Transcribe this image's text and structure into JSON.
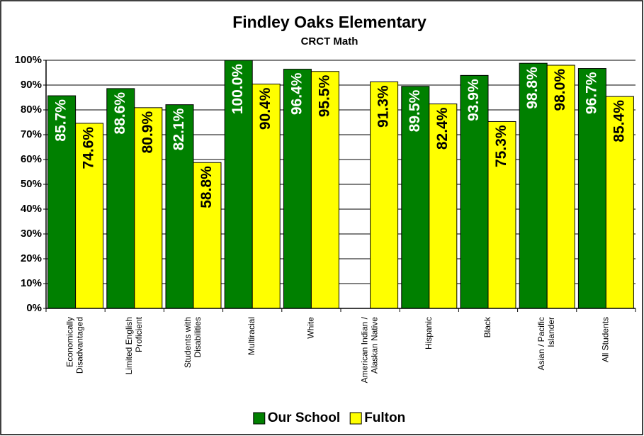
{
  "chart_data": {
    "type": "bar",
    "title": "Findley Oaks Elementary",
    "subtitle": "CRCT Math",
    "categories": [
      "Economically Disadvantaged",
      "Limited English Proficient",
      "Students with Disabilities",
      "Multiracial",
      "White",
      "American Indian / Alaskan Native",
      "Hispanic",
      "Black",
      "Asian / Pacific Islander",
      "All Students"
    ],
    "series": [
      {
        "name": "Our School",
        "color": "#008000",
        "label_color": "#ffffff",
        "values": [
          85.7,
          88.6,
          82.1,
          100.0,
          96.4,
          null,
          89.5,
          93.9,
          98.8,
          96.7
        ],
        "value_labels": [
          "85.7%",
          "88.6%",
          "82.1%",
          "100.0%",
          "96.4%",
          null,
          "89.5%",
          "93.9%",
          "98.8%",
          "96.7%"
        ]
      },
      {
        "name": "Fulton",
        "color": "#ffff00",
        "label_color": "#000000",
        "values": [
          74.6,
          80.9,
          58.8,
          90.4,
          95.5,
          91.3,
          82.4,
          75.3,
          98.0,
          85.4
        ],
        "value_labels": [
          "74.6%",
          "80.9%",
          "58.8%",
          "90.4%",
          "95.5%",
          "91.3%",
          "82.4%",
          "75.3%",
          "98.0%",
          "85.4%"
        ]
      }
    ],
    "ylim": [
      0,
      100
    ],
    "yticks": [
      {
        "value": 0,
        "label": "0%"
      },
      {
        "value": 10,
        "label": "10%"
      },
      {
        "value": 20,
        "label": "20%"
      },
      {
        "value": 30,
        "label": "30%"
      },
      {
        "value": 40,
        "label": "40%"
      },
      {
        "value": 50,
        "label": "50%"
      },
      {
        "value": 60,
        "label": "60%"
      },
      {
        "value": 70,
        "label": "70%"
      },
      {
        "value": 80,
        "label": "80%"
      },
      {
        "value": 90,
        "label": "90%"
      },
      {
        "value": 100,
        "label": "100%"
      }
    ],
    "grid": true,
    "legend": "bottom"
  }
}
